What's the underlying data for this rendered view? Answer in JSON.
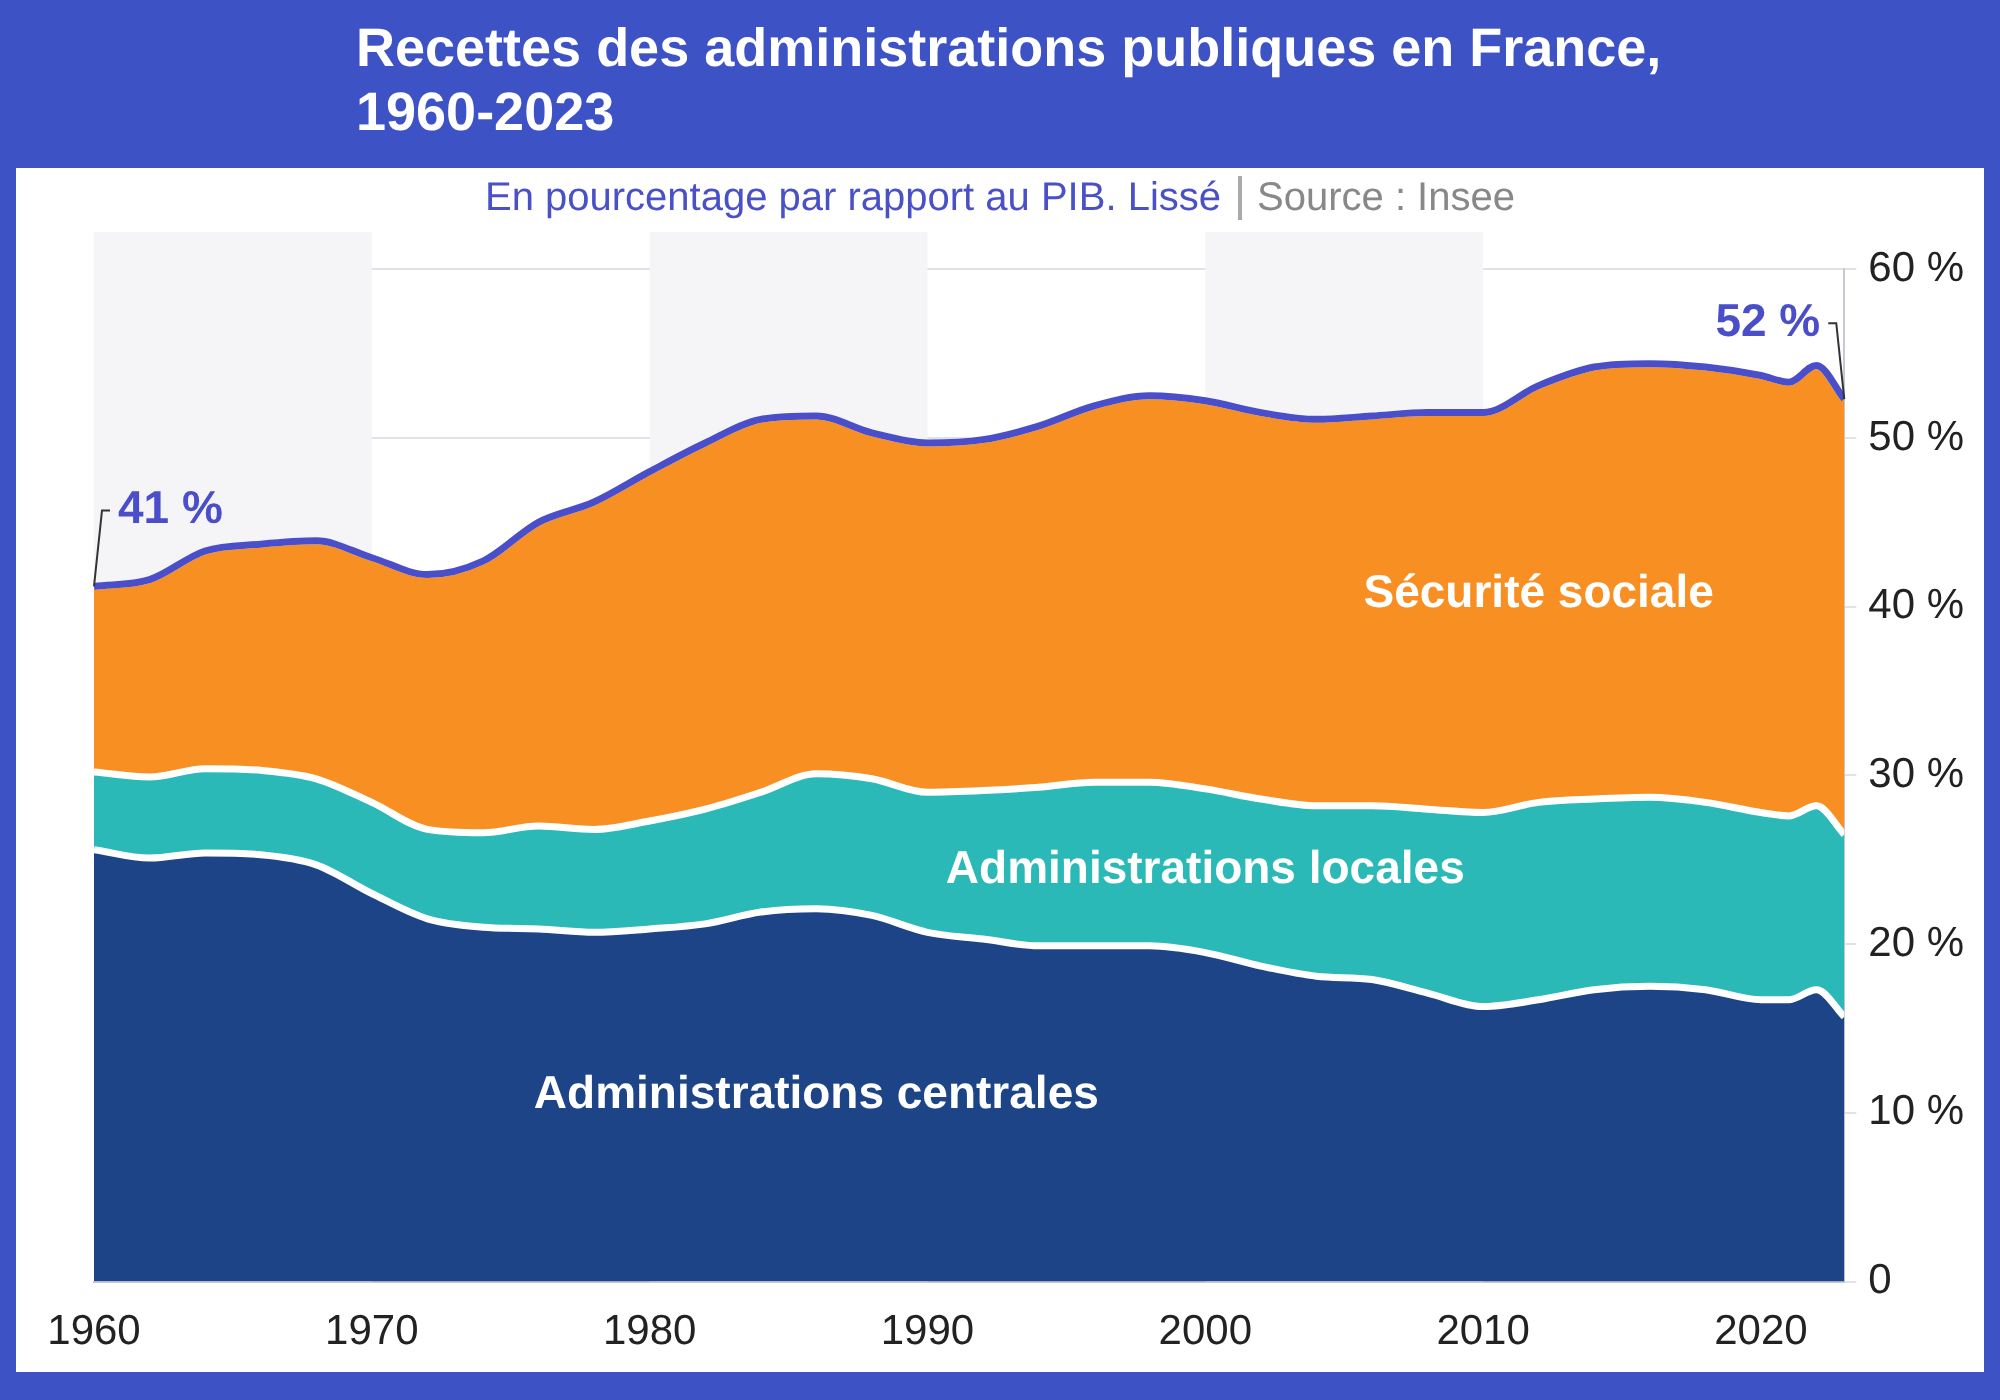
{
  "chart_data": {
    "type": "area",
    "title": "Recettes des administrations publiques en France, 1960-2023",
    "subtitle": "En pourcentage par rapport au PIB. Lissé",
    "annotations": [
      "Source : Insee",
      {
        "text": "41 %",
        "x": 1960,
        "y": 41.2
      },
      {
        "text": "52 %",
        "x": 2023,
        "y": 52.3
      }
    ],
    "x": [
      1960,
      1962,
      1964,
      1966,
      1968,
      1970,
      1972,
      1974,
      1976,
      1978,
      1980,
      1982,
      1984,
      1986,
      1988,
      1990,
      1992,
      1994,
      1996,
      1998,
      2000,
      2002,
      2004,
      2006,
      2008,
      2010,
      2012,
      2014,
      2016,
      2018,
      2020,
      2021,
      2022,
      2023
    ],
    "stacked": true,
    "series": [
      {
        "name": "Administrations centrales",
        "color": "#1d4486",
        "values": [
          25.6,
          25.1,
          25.4,
          25.3,
          24.7,
          23.0,
          21.5,
          21.0,
          20.9,
          20.7,
          20.9,
          21.2,
          21.9,
          22.1,
          21.7,
          20.7,
          20.3,
          19.9,
          19.9,
          19.9,
          19.5,
          18.7,
          18.1,
          17.9,
          17.1,
          16.3,
          16.7,
          17.3,
          17.5,
          17.3,
          16.7,
          16.7,
          17.3,
          15.7
        ]
      },
      {
        "name": "Administrations locales",
        "color": "#2bb9b7",
        "values": [
          4.6,
          4.8,
          5.0,
          5.0,
          5.1,
          5.4,
          5.3,
          5.6,
          6.1,
          6.1,
          6.4,
          6.8,
          7.1,
          8.0,
          8.1,
          8.3,
          8.8,
          9.4,
          9.7,
          9.7,
          9.7,
          9.9,
          10.1,
          10.3,
          10.9,
          11.5,
          11.7,
          11.3,
          11.2,
          11.1,
          11.1,
          10.9,
          10.9,
          10.8
        ]
      },
      {
        "name": "Sécurité sociale",
        "color": "#f78f22",
        "values": [
          11.0,
          11.7,
          12.9,
          13.4,
          14.1,
          14.5,
          15.1,
          16.1,
          18.0,
          19.4,
          20.7,
          21.7,
          22.1,
          21.2,
          20.5,
          20.7,
          20.8,
          21.4,
          22.3,
          22.9,
          23.0,
          22.9,
          22.9,
          23.1,
          23.5,
          23.7,
          24.7,
          25.6,
          25.7,
          25.8,
          25.9,
          25.7,
          26.1,
          25.8
        ]
      },
      {
        "type": "line",
        "color": "#4a4fc9",
        "values": [
          41.2,
          41.6,
          43.3,
          43.7,
          43.9,
          42.9,
          41.9,
          42.7,
          45.0,
          46.2,
          48.0,
          49.7,
          51.1,
          51.3,
          50.3,
          49.7,
          49.9,
          50.7,
          51.9,
          52.5,
          52.2,
          51.5,
          51.1,
          51.3,
          51.5,
          51.5,
          53.1,
          54.2,
          54.4,
          54.2,
          53.7,
          53.3,
          54.3,
          52.3
        ]
      }
    ],
    "xlim": [
      1960,
      2023
    ],
    "xticks": [
      1960,
      1970,
      1980,
      1990,
      2000,
      2010,
      2020
    ],
    "ylim": [
      0,
      60
    ],
    "yticks": [
      0,
      {
        "value": 10,
        "label": "10 %"
      },
      {
        "value": 20,
        "label": "20 %"
      },
      {
        "value": 30,
        "label": "30 %"
      },
      {
        "value": 40,
        "label": "40 %"
      },
      {
        "value": 50,
        "label": "50 %"
      },
      {
        "value": 60,
        "label": "60 %"
      }
    ],
    "grid": "y",
    "legend": false,
    "bands": [
      {
        "axis": "x",
        "from": 1960,
        "to": 1970,
        "color": "#f5f5f7"
      },
      {
        "axis": "x",
        "from": 1980,
        "to": 1990,
        "color": "#f5f5f7"
      },
      {
        "axis": "x",
        "from": 2000,
        "to": 2010,
        "color": "#f5f5f7"
      }
    ]
  }
}
